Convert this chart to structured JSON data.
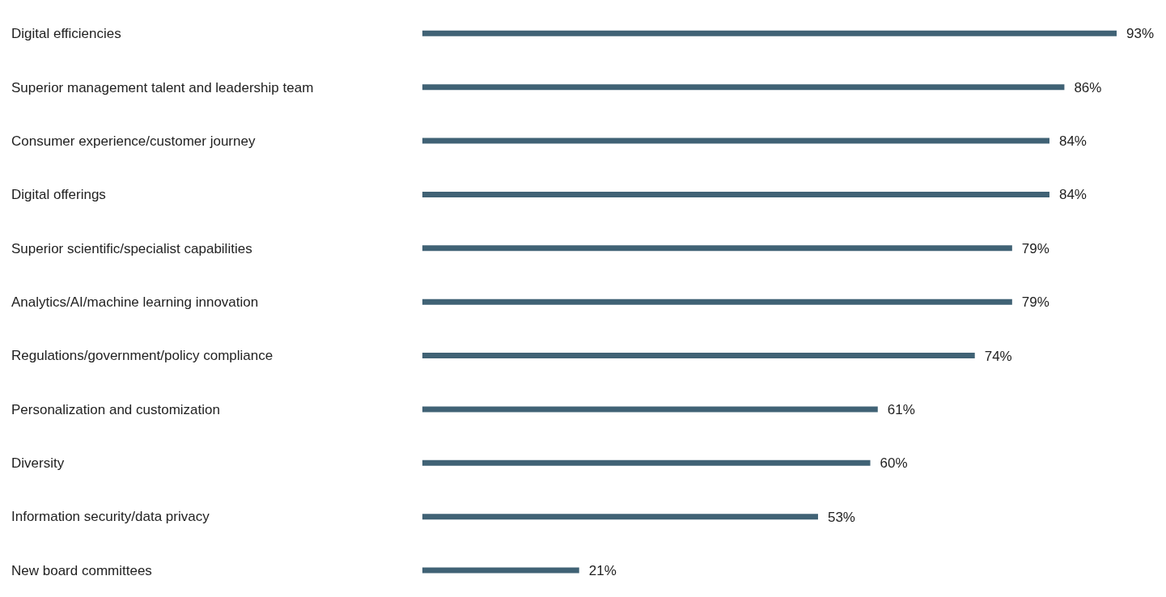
{
  "chart_data": {
    "type": "bar",
    "orientation": "horizontal",
    "categories": [
      "Digital efficiencies",
      "Superior management talent and leadership team",
      "Consumer experience/customer journey",
      "Digital offerings",
      "Superior scientific/specialist capabilities",
      "Analytics/AI/machine learning innovation",
      "Regulations/government/policy compliance",
      "Personalization and customization",
      "Diversity",
      "Information security/data privacy",
      "New board committees"
    ],
    "values": [
      93,
      86,
      84,
      84,
      79,
      79,
      74,
      61,
      60,
      53,
      21
    ],
    "value_labels": [
      "93%",
      "86%",
      "84%",
      "84%",
      "79%",
      "79%",
      "74%",
      "61%",
      "60%",
      "53%",
      "21%"
    ],
    "color": "#406275"
  }
}
